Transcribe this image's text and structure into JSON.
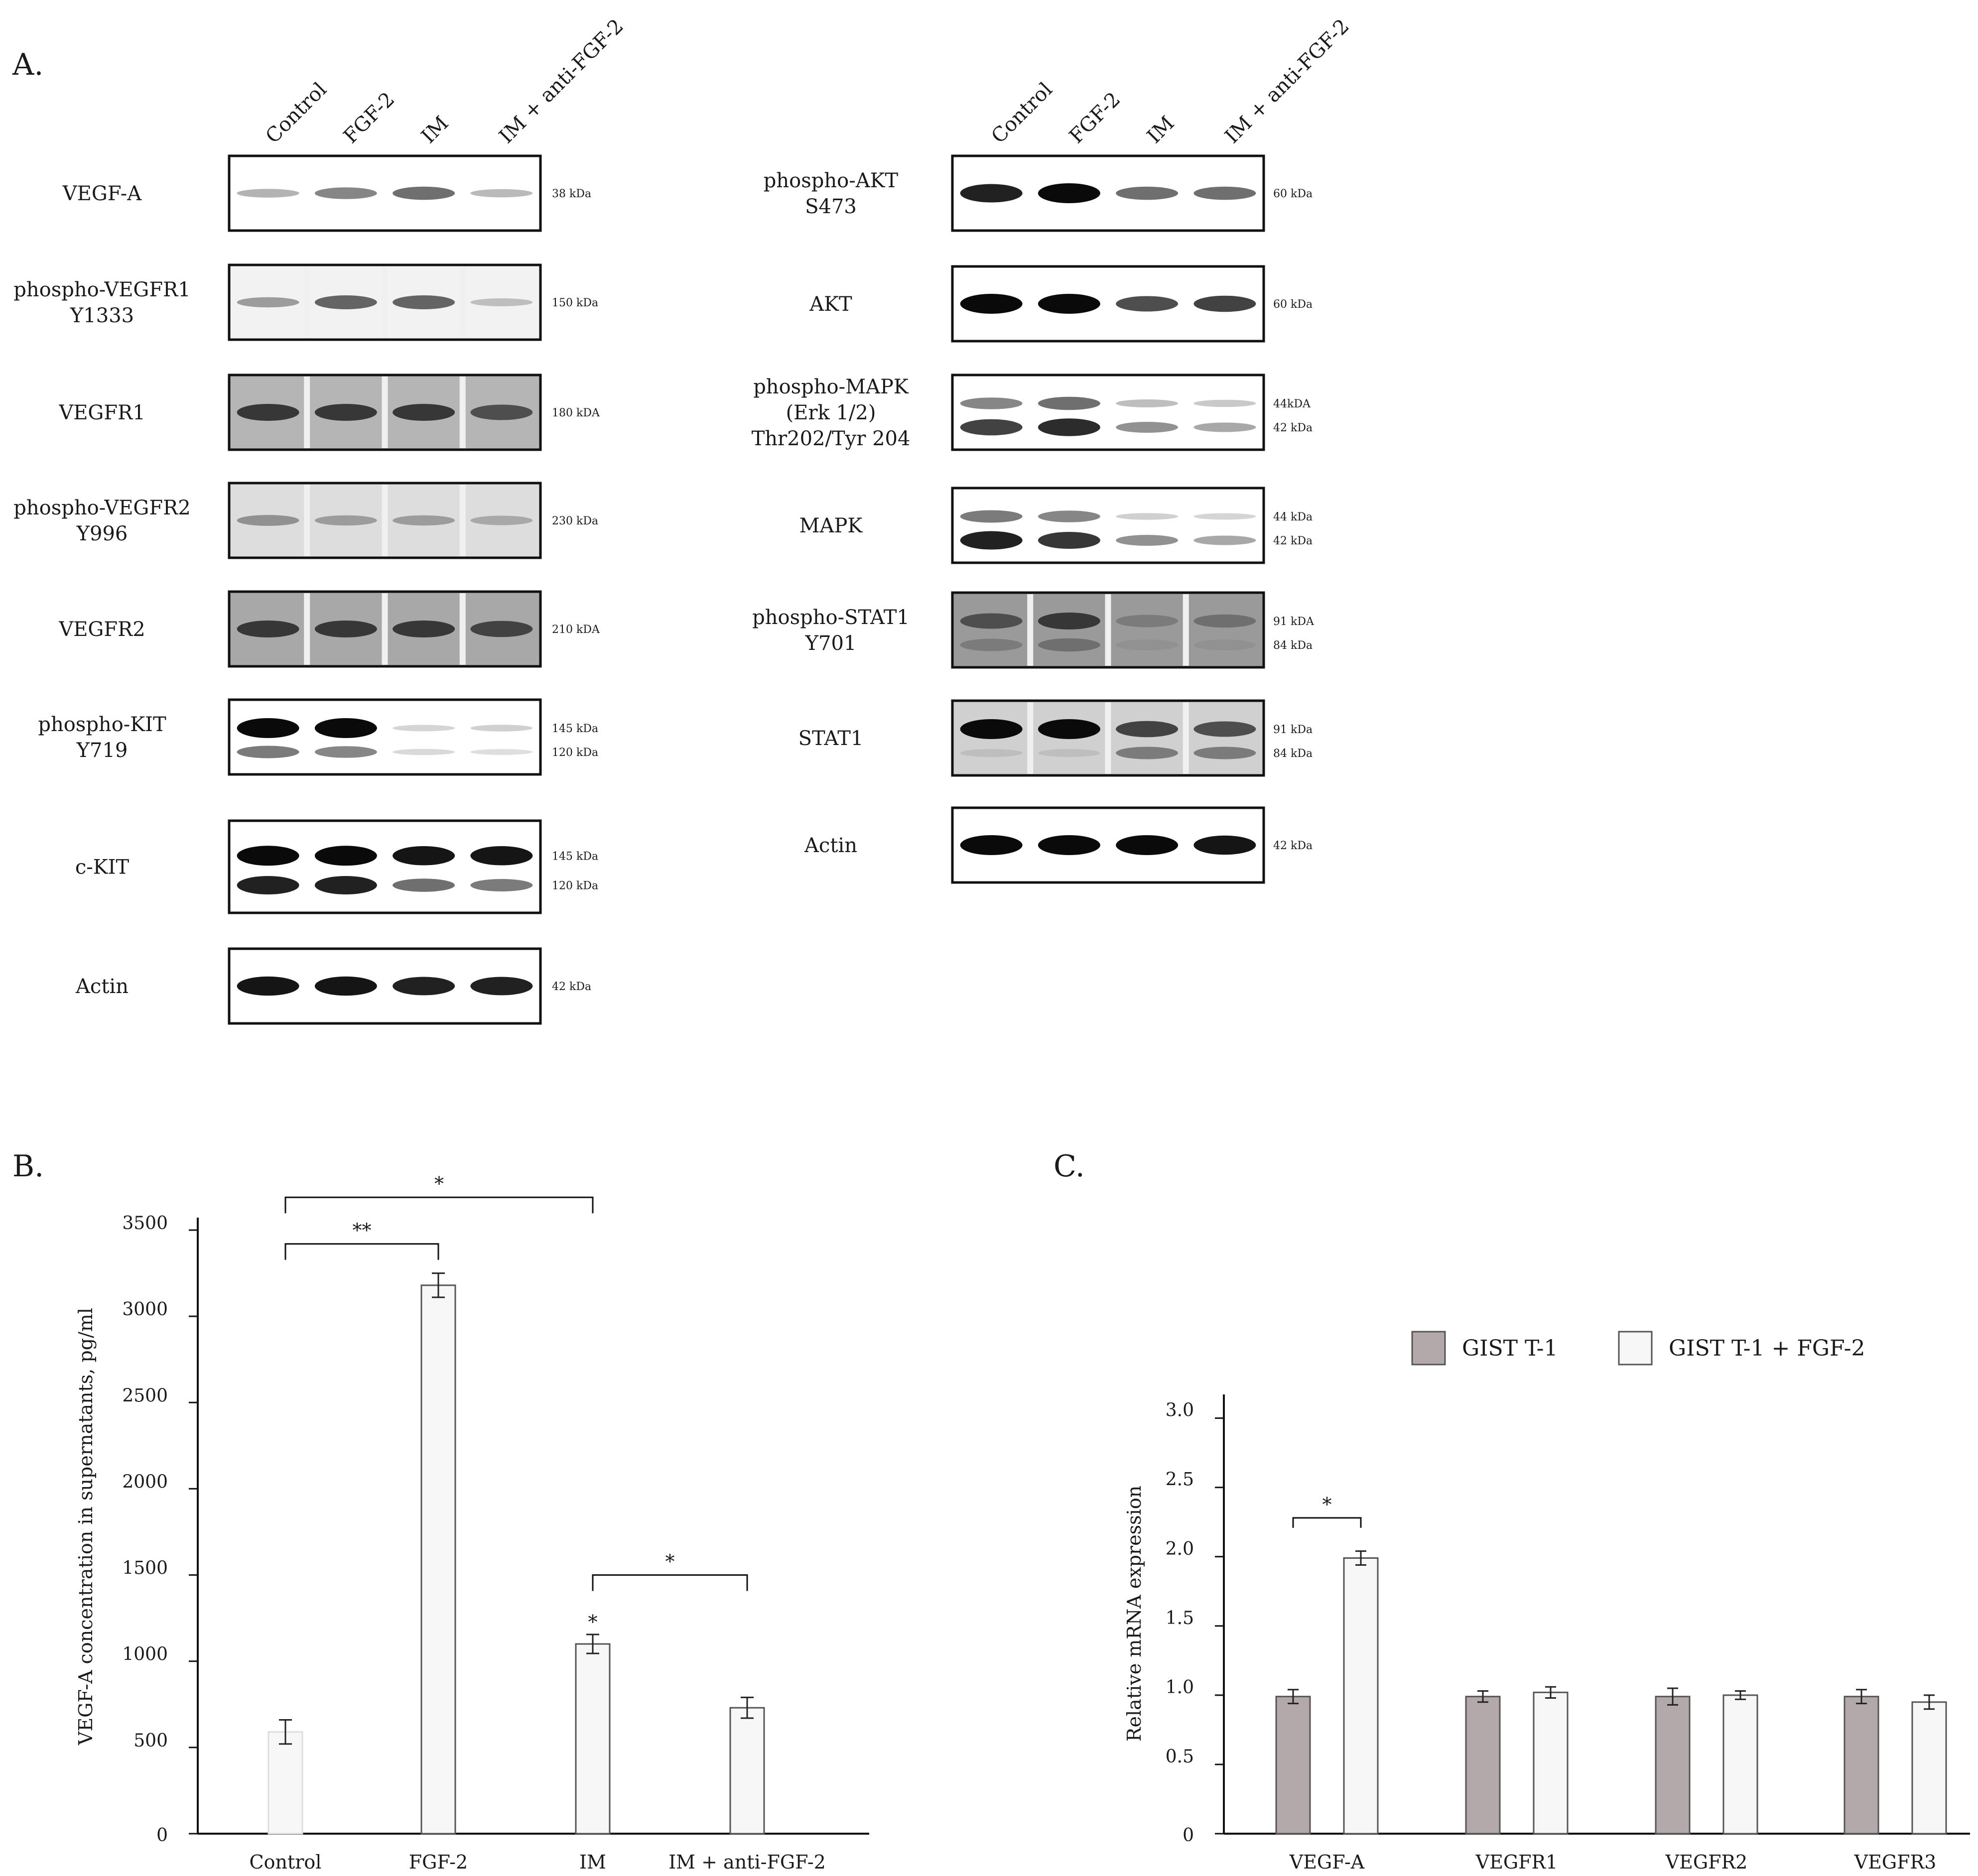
{
  "panel_letters": {
    "a": "A.",
    "b": "B.",
    "c": "C."
  },
  "panel_a": {
    "lanes": [
      "Control",
      "FGF-2",
      "IM",
      "IM + anti-FGF-2"
    ],
    "left_blots": [
      {
        "label": [
          "VEGF-A"
        ],
        "kda": [
          "38 kDa"
        ],
        "bands": [
          [
            0.25,
            0.45,
            0.55,
            0.22
          ]
        ],
        "bg": "#ffffff"
      },
      {
        "label": [
          "phospho-VEGFR1",
          "Y1333"
        ],
        "kda": [
          "150 kDa"
        ],
        "bands": [
          [
            0.35,
            0.6,
            0.6,
            0.2
          ]
        ],
        "bg": "#f2f2f2"
      },
      {
        "label": [
          "VEGFR1"
        ],
        "kda": [
          "180 kDA"
        ],
        "bands": [
          [
            0.8,
            0.8,
            0.8,
            0.7
          ]
        ],
        "bg": "#b5b5b5"
      },
      {
        "label": [
          "phospho-VEGFR2",
          "Y996"
        ],
        "kda": [
          "230 kDa"
        ],
        "bands": [
          [
            0.4,
            0.35,
            0.35,
            0.3
          ]
        ],
        "bg": "#dddddd"
      },
      {
        "label": [
          "VEGFR2"
        ],
        "kda": [
          "210 kDA"
        ],
        "bands": [
          [
            0.8,
            0.8,
            0.8,
            0.75
          ]
        ],
        "bg": "#a8a8a8"
      },
      {
        "label": [
          "phospho-KIT",
          "Y719"
        ],
        "kda": [
          "145 kDa",
          "120 kDa"
        ],
        "bands": [
          [
            1.0,
            1.0,
            0.1,
            0.12
          ],
          [
            0.5,
            0.45,
            0.08,
            0.06
          ]
        ],
        "bg": "#ffffff"
      },
      {
        "label": [
          "c-KIT"
        ],
        "kda": [
          "145 kDa",
          "120 kDa"
        ],
        "bands": [
          [
            1.0,
            1.0,
            0.95,
            0.95
          ],
          [
            0.9,
            0.9,
            0.55,
            0.5
          ]
        ],
        "bg": "#ffffff"
      },
      {
        "label": [
          "Actin"
        ],
        "kda": [
          "42 kDa"
        ],
        "bands": [
          [
            0.95,
            0.95,
            0.9,
            0.9
          ]
        ],
        "bg": "#ffffff"
      }
    ],
    "right_blots": [
      {
        "label": [
          "phospho-AKT",
          "S473"
        ],
        "kda": [
          "60 kDa"
        ],
        "bands": [
          [
            0.9,
            1.0,
            0.55,
            0.55
          ]
        ],
        "bg": "#ffffff"
      },
      {
        "label": [
          "AKT"
        ],
        "kda": [
          "60 kDa"
        ],
        "bands": [
          [
            1.0,
            1.0,
            0.7,
            0.75
          ]
        ],
        "bg": "#ffffff"
      },
      {
        "label": [
          "phospho-MAPK",
          "(Erk 1/2)",
          "Thr202/Tyr 204"
        ],
        "kda": [
          "44kDA",
          "42 kDa"
        ],
        "bands": [
          [
            0.45,
            0.55,
            0.2,
            0.15
          ],
          [
            0.75,
            0.85,
            0.4,
            0.3
          ]
        ],
        "bg": "#ffffff"
      },
      {
        "label": [
          "MAPK"
        ],
        "kda": [
          "44 kDa",
          "42 kDa"
        ],
        "bands": [
          [
            0.5,
            0.45,
            0.12,
            0.1
          ],
          [
            0.9,
            0.8,
            0.4,
            0.3
          ]
        ],
        "bg": "#ffffff"
      },
      {
        "label": [
          "phospho-STAT1",
          "Y701"
        ],
        "kda": [
          "91 kDA",
          "84 kDa"
        ],
        "bands": [
          [
            0.7,
            0.8,
            0.5,
            0.55
          ],
          [
            0.5,
            0.55,
            0.4,
            0.4
          ]
        ],
        "bg": "#9a9a9a"
      },
      {
        "label": [
          "STAT1"
        ],
        "kda": [
          "91 kDa",
          "84 kDa"
        ],
        "bands": [
          [
            1.0,
            1.0,
            0.75,
            0.7
          ],
          [
            0.2,
            0.2,
            0.5,
            0.5
          ]
        ],
        "bg": "#d0d0d0"
      },
      {
        "label": [
          "Actin"
        ],
        "kda": [
          "42 kDa"
        ],
        "bands": [
          [
            1.0,
            1.0,
            1.0,
            0.95
          ]
        ],
        "bg": "#ffffff"
      }
    ]
  },
  "chart_data": [
    {
      "type": "bar",
      "panel": "B",
      "categories": [
        "Control",
        "FGF-2",
        "IM",
        "IM + anti-FGF-2"
      ],
      "values": [
        590,
        3180,
        1100,
        730
      ],
      "errors": [
        70,
        70,
        55,
        60
      ],
      "ylabel": "VEGF-A concentration in supernatants, pg/ml",
      "ylim": [
        0,
        3500
      ],
      "yticks": [
        0,
        500,
        1000,
        1500,
        2000,
        2500,
        3000,
        3500
      ],
      "ytick_labels": [
        "0",
        "500",
        "1000",
        "1500",
        "2000",
        "2500",
        "3000",
        "3500"
      ],
      "bar_color": "#f7f7f7",
      "point_annotations": [
        {
          "category": "IM",
          "text": "*"
        }
      ],
      "brackets": [
        {
          "from": "Control",
          "to": "FGF-2",
          "text": "**",
          "level": 3420
        },
        {
          "from": "Control",
          "to": "IM",
          "text": "*",
          "level": 3690
        },
        {
          "from": "IM",
          "to": "IM + anti-FGF-2",
          "text": "*",
          "level": 1500
        }
      ]
    },
    {
      "type": "bar",
      "panel": "C",
      "categories": [
        "VEGF-A",
        "VEGFR1",
        "VEGFR2",
        "VEGFR3"
      ],
      "series": [
        {
          "name": "GIST T-1",
          "values": [
            0.99,
            0.99,
            0.99,
            0.99
          ],
          "errors": [
            0.05,
            0.04,
            0.06,
            0.05
          ],
          "color": "#b3a8aa"
        },
        {
          "name": "GIST T-1 + FGF-2",
          "values": [
            1.99,
            1.02,
            1.0,
            0.95
          ],
          "errors": [
            0.05,
            0.04,
            0.03,
            0.05
          ],
          "color": "#f7f7f7"
        }
      ],
      "ylabel": "Relative mRNA expression",
      "ylim": [
        0,
        3.2
      ],
      "yticks": [
        0,
        0.5,
        1.0,
        1.5,
        2.0,
        2.5,
        3.0
      ],
      "ytick_labels": [
        "0",
        "0.5",
        "1.0",
        "1.5",
        "2.0",
        "2.5",
        "3.0"
      ],
      "legend": "top-right",
      "brackets": [
        {
          "category": "VEGF-A",
          "text": "*",
          "level": 2.28
        }
      ]
    }
  ]
}
